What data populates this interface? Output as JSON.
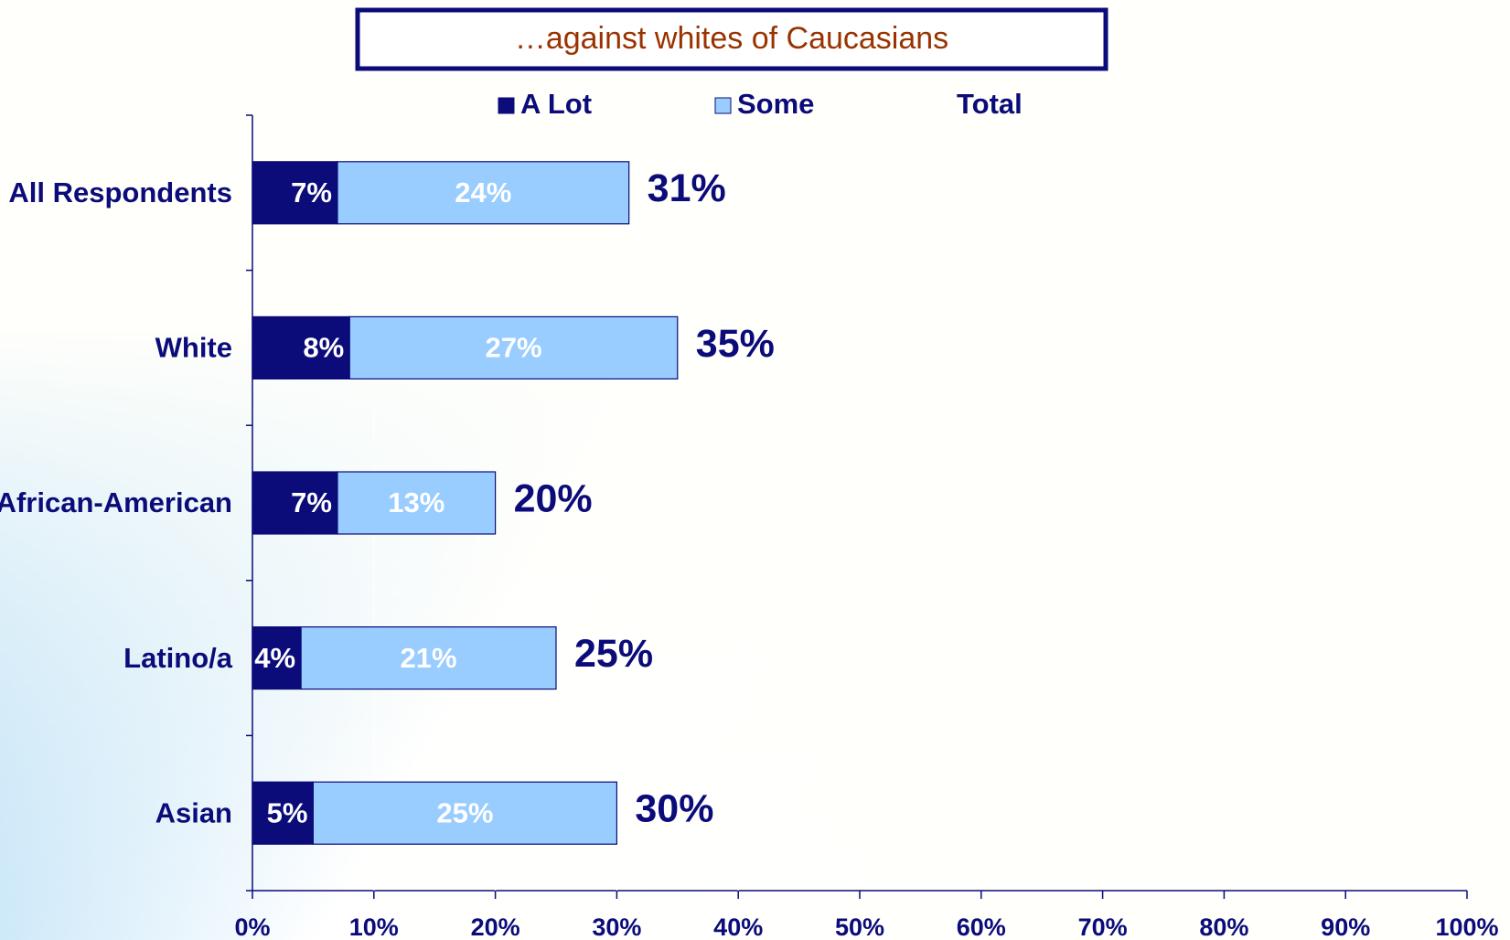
{
  "chart_data": {
    "type": "stacked-bar-horizontal",
    "title": "…against whites of Caucasians",
    "categories": [
      "All Respondents",
      "White",
      "African-American",
      "Latino/a",
      "Asian"
    ],
    "series": [
      {
        "name": "A Lot",
        "color": "#0b0b7a",
        "values": [
          7,
          8,
          7,
          4,
          5
        ],
        "value_labels": [
          "7%",
          "8%",
          "7%",
          "4%",
          "5%"
        ]
      },
      {
        "name": "Some",
        "color": "#99ccff",
        "values": [
          24,
          27,
          13,
          21,
          25
        ],
        "value_labels": [
          "24%",
          "27%",
          "13%",
          "21%",
          "25%"
        ]
      },
      {
        "name": "Total",
        "values": [
          31,
          35,
          20,
          25,
          30
        ],
        "value_labels": [
          "31%",
          "35%",
          "20%",
          "25%",
          "30%"
        ]
      }
    ],
    "xlim": [
      0,
      100
    ],
    "xticks": [
      {
        "value": 0,
        "label": "0%"
      },
      {
        "value": 10,
        "label": "10%"
      },
      {
        "value": 20,
        "label": "20%"
      },
      {
        "value": 30,
        "label": "30%"
      },
      {
        "value": 40,
        "label": "40%"
      },
      {
        "value": 50,
        "label": "50%"
      },
      {
        "value": 60,
        "label": "60%"
      },
      {
        "value": 70,
        "label": "70%"
      },
      {
        "value": 80,
        "label": "80%"
      },
      {
        "value": 90,
        "label": "90%"
      },
      {
        "value": 100,
        "label": "100%"
      }
    ]
  }
}
